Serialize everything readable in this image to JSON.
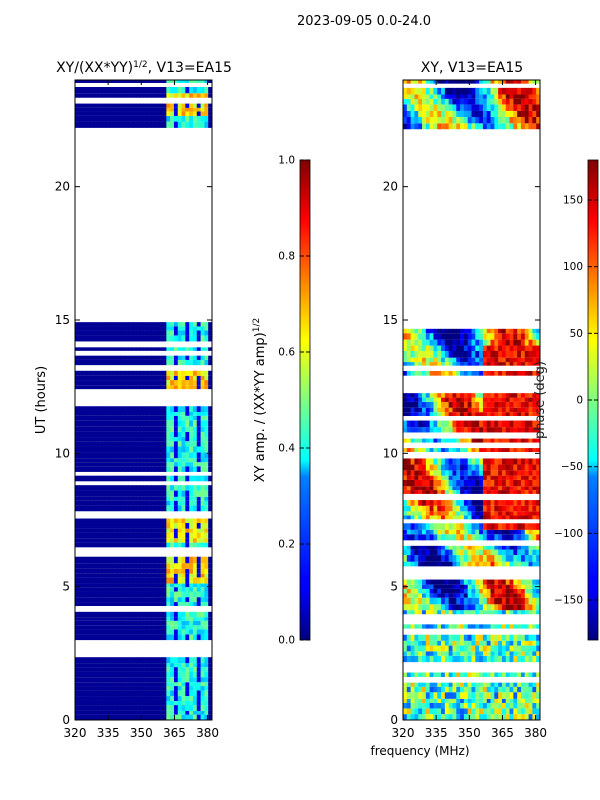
{
  "figure": {
    "suptitle": "2023-09-05 0.0-24.0"
  },
  "chart_data": [
    {
      "type": "heatmap",
      "title": "XY/(XX*YY)^{1/2}, V13=EA15",
      "title_parts": {
        "base": "XY/(XX*YY)",
        "sup": "1/2",
        "tail": ", V13=EA15"
      },
      "xlabel": "",
      "ylabel": "UT (hours)",
      "xlim": [
        320,
        382
      ],
      "ylim": [
        0,
        24
      ],
      "xticks": [
        320,
        335,
        350,
        365,
        380
      ],
      "yticks": [
        0,
        5,
        10,
        15,
        20
      ],
      "colorbar": {
        "label": "XY amp. / (XX*YY amp)^{1/2}",
        "label_parts": {
          "base": "XY amp. / (XX*YY amp)",
          "sup": "1/2"
        },
        "range": [
          0.0,
          1.0
        ],
        "ticks": [
          "0.0",
          "0.2",
          "0.4",
          "0.6",
          "0.8",
          "1.0"
        ],
        "tick_values": [
          0.0,
          0.2,
          0.4,
          0.6,
          0.8,
          1.0
        ],
        "colormap": "jet"
      },
      "data_gap_hours": [
        15.05,
        22.1
      ],
      "description_values": {
        "background_channels": 0.02,
        "active_band_mhz": [
          360,
          379
        ],
        "active_band_values": [
          0.35,
          0.75
        ]
      }
    },
    {
      "type": "heatmap",
      "title": "XY, V13=EA15",
      "xlabel": "frequency (MHz)",
      "ylabel": "",
      "xlim": [
        320,
        382
      ],
      "ylim": [
        0,
        24
      ],
      "xticks": [
        320,
        335,
        350,
        365,
        380
      ],
      "yticks": [
        0,
        5,
        10,
        15,
        20
      ],
      "colorbar": {
        "label": "phase (deg)",
        "range": [
          -180,
          180
        ],
        "ticks": [
          "−150",
          "−100",
          "−50",
          "0",
          "50",
          "100",
          "150"
        ],
        "tick_values": [
          -150,
          -100,
          -50,
          0,
          50,
          100,
          150
        ],
        "colormap": "jet"
      },
      "data_gap_hours": [
        15.05,
        22.1
      ]
    }
  ],
  "colors": {
    "jet_dark_blue": "#00007f",
    "jet_blue": "#0000ff",
    "jet_cyan": "#00ffff",
    "jet_yellow": "#ffff00",
    "jet_red": "#ff0000",
    "jet_dark_red": "#7f0000"
  }
}
